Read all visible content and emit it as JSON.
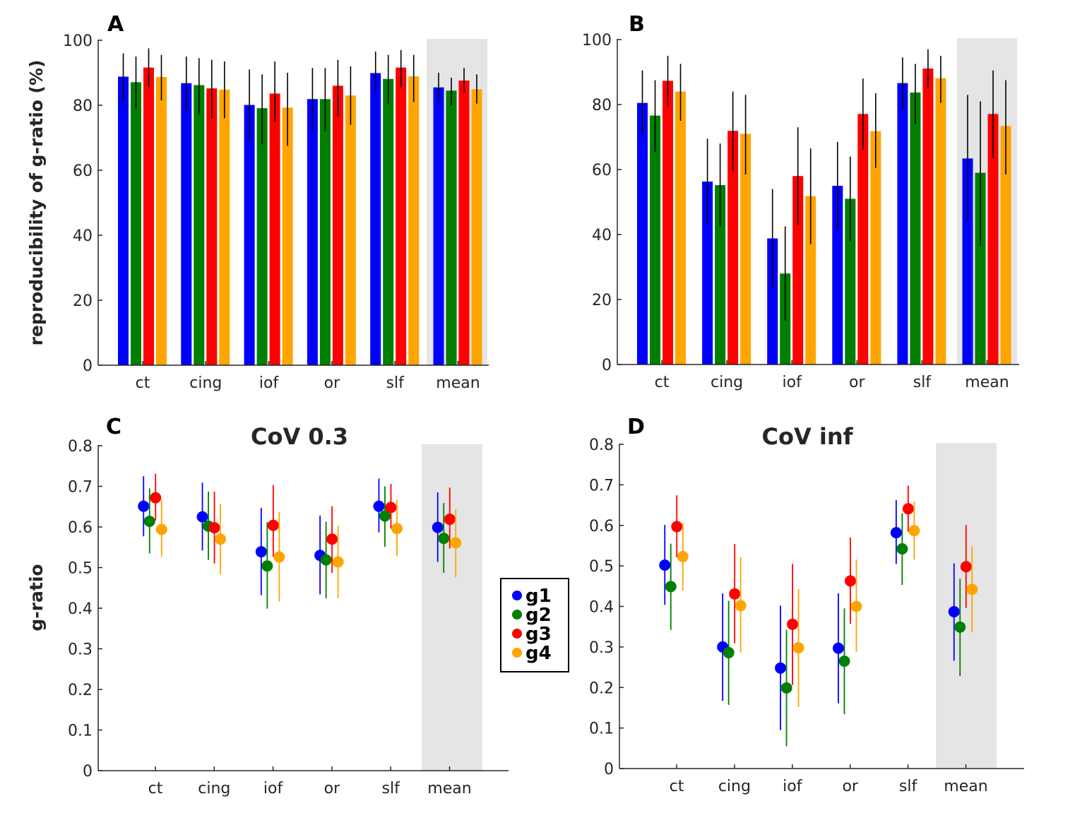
{
  "colors": {
    "g1": "#0000ff",
    "g2": "#007f00",
    "g3": "#ff0000",
    "g4": "#ffa500",
    "highlight": "#e5e5e5",
    "axis": "#262626",
    "errorbar": "#000000"
  },
  "legend": {
    "entries": [
      "g1",
      "g2",
      "g3",
      "g4"
    ]
  },
  "chart_data": [
    {
      "panel": "A",
      "type": "bar",
      "title": "",
      "ylabel": "reproducibility of g-ratio (%)",
      "xlabel": "",
      "ylim": [
        0,
        100
      ],
      "yticks": [
        "0",
        "20",
        "40",
        "60",
        "80",
        "100"
      ],
      "categories": [
        "ct",
        "cing",
        "iof",
        "or",
        "slf",
        "mean"
      ],
      "highlighted_category": "mean",
      "series": [
        {
          "name": "g1",
          "values": [
            88.8,
            86.8,
            80.1,
            81.9,
            89.9,
            85.5
          ],
          "err_low": [
            81,
            78.5,
            69.5,
            72,
            84,
            80.5
          ],
          "err_high": [
            96,
            95,
            91,
            91.5,
            96.5,
            90
          ]
        },
        {
          "name": "g2",
          "values": [
            87.1,
            86.2,
            79.1,
            81.9,
            88.1,
            84.5
          ],
          "err_low": [
            79,
            77,
            68,
            72,
            80.5,
            80
          ],
          "err_high": [
            95,
            94.5,
            89.5,
            91.5,
            95.5,
            88.5
          ]
        },
        {
          "name": "g3",
          "values": [
            91.6,
            85.2,
            83.6,
            86.0,
            91.6,
            87.6
          ],
          "err_low": [
            85.5,
            76,
            75,
            76.5,
            85.5,
            84
          ],
          "err_high": [
            97.5,
            94,
            93.5,
            94,
            97,
            91.5
          ]
        },
        {
          "name": "g4",
          "values": [
            88.7,
            84.8,
            79.3,
            83.0,
            88.9,
            84.9
          ],
          "err_low": [
            81.5,
            76,
            67.5,
            74,
            81,
            80.5
          ],
          "err_high": [
            95.5,
            93.5,
            90,
            92,
            95.5,
            89.5
          ]
        }
      ]
    },
    {
      "panel": "B",
      "type": "bar",
      "title": "",
      "ylabel": "",
      "xlabel": "",
      "ylim": [
        0,
        100
      ],
      "yticks": [
        "0",
        "20",
        "40",
        "60",
        "80",
        "100"
      ],
      "categories": [
        "ct",
        "cing",
        "iof",
        "or",
        "slf",
        "mean"
      ],
      "highlighted_category": "mean",
      "series": [
        {
          "name": "g1",
          "values": [
            80.5,
            56.3,
            38.8,
            55.0,
            86.6,
            63.4
          ],
          "err_low": [
            71,
            43,
            23.5,
            41.5,
            78.5,
            44
          ],
          "err_high": [
            90.5,
            69.5,
            54,
            68.5,
            94.5,
            83
          ]
        },
        {
          "name": "g2",
          "values": [
            76.6,
            55.2,
            28.0,
            51.0,
            83.7,
            59.0
          ],
          "err_low": [
            65.5,
            42.5,
            13.5,
            38,
            74,
            36.5
          ],
          "err_high": [
            87.5,
            68,
            42.5,
            64,
            92.5,
            81
          ]
        },
        {
          "name": "g3",
          "values": [
            87.3,
            71.9,
            58.0,
            77.1,
            91.1,
            77.1
          ],
          "err_low": [
            79.5,
            59.5,
            43,
            66,
            85,
            63.5
          ],
          "err_high": [
            95,
            84,
            73,
            88,
            97,
            90.5
          ]
        },
        {
          "name": "g4",
          "values": [
            84.0,
            71.0,
            51.8,
            71.8,
            88.1,
            73.4
          ],
          "err_low": [
            75,
            58.5,
            37,
            60.5,
            80.5,
            58.5
          ],
          "err_high": [
            92.5,
            83,
            66.5,
            83.5,
            95,
            87.5
          ]
        }
      ]
    },
    {
      "panel": "C",
      "type": "scatter",
      "title": "CoV 0.3",
      "ylabel": "g-ratio",
      "xlabel": "",
      "ylim": [
        0,
        0.8
      ],
      "yticks": [
        "0",
        "0.1",
        "0.2",
        "0.3",
        "0.4",
        "0.5",
        "0.6",
        "0.7",
        "0.8"
      ],
      "categories": [
        "ct",
        "cing",
        "iof",
        "or",
        "slf",
        "mean"
      ],
      "highlighted_category": "mean",
      "series": [
        {
          "name": "g1",
          "values": [
            0.651,
            0.625,
            0.539,
            0.53,
            0.651,
            0.599
          ],
          "err_low": [
            0.577,
            0.542,
            0.432,
            0.434,
            0.587,
            0.514
          ],
          "err_high": [
            0.725,
            0.709,
            0.647,
            0.628,
            0.719,
            0.685
          ]
        },
        {
          "name": "g2",
          "values": [
            0.614,
            0.602,
            0.504,
            0.519,
            0.627,
            0.572
          ],
          "err_low": [
            0.535,
            0.519,
            0.399,
            0.424,
            0.551,
            0.487
          ],
          "err_high": [
            0.695,
            0.687,
            0.612,
            0.613,
            0.7,
            0.659
          ]
        },
        {
          "name": "g3",
          "values": [
            0.672,
            0.598,
            0.604,
            0.57,
            0.648,
            0.619
          ],
          "err_low": [
            0.616,
            0.51,
            0.527,
            0.487,
            0.596,
            0.547
          ],
          "err_high": [
            0.731,
            0.687,
            0.703,
            0.651,
            0.706,
            0.697
          ]
        },
        {
          "name": "g4",
          "values": [
            0.594,
            0.57,
            0.526,
            0.514,
            0.596,
            0.561
          ],
          "err_low": [
            0.526,
            0.484,
            0.416,
            0.425,
            0.528,
            0.476
          ],
          "err_high": [
            0.666,
            0.657,
            0.637,
            0.603,
            0.667,
            0.643
          ]
        }
      ]
    },
    {
      "panel": "D",
      "type": "scatter",
      "title": "CoV inf",
      "ylabel": "",
      "xlabel": "",
      "ylim": [
        0,
        0.8
      ],
      "yticks": [
        "0",
        "0.1",
        "0.2",
        "0.3",
        "0.4",
        "0.5",
        "0.6",
        "0.7",
        "0.8"
      ],
      "categories": [
        "ct",
        "cing",
        "iof",
        "or",
        "slf",
        "mean"
      ],
      "highlighted_category": "mean",
      "series": [
        {
          "name": "g1",
          "values": [
            0.502,
            0.3,
            0.248,
            0.297,
            0.582,
            0.387
          ],
          "err_low": [
            0.404,
            0.167,
            0.095,
            0.161,
            0.505,
            0.266
          ],
          "err_high": [
            0.601,
            0.432,
            0.402,
            0.432,
            0.662,
            0.506
          ]
        },
        {
          "name": "g2",
          "values": [
            0.449,
            0.286,
            0.199,
            0.265,
            0.542,
            0.349
          ],
          "err_low": [
            0.342,
            0.157,
            0.055,
            0.134,
            0.453,
            0.228
          ],
          "err_high": [
            0.555,
            0.414,
            0.342,
            0.395,
            0.63,
            0.468
          ]
        },
        {
          "name": "g3",
          "values": [
            0.597,
            0.431,
            0.356,
            0.463,
            0.641,
            0.498
          ],
          "err_low": [
            0.521,
            0.309,
            0.206,
            0.357,
            0.584,
            0.396
          ],
          "err_high": [
            0.674,
            0.554,
            0.505,
            0.57,
            0.698,
            0.601
          ]
        },
        {
          "name": "g4",
          "values": [
            0.523,
            0.402,
            0.298,
            0.4,
            0.587,
            0.442
          ],
          "err_low": [
            0.439,
            0.286,
            0.152,
            0.288,
            0.516,
            0.336
          ],
          "err_high": [
            0.607,
            0.522,
            0.443,
            0.516,
            0.659,
            0.549
          ]
        }
      ]
    }
  ]
}
